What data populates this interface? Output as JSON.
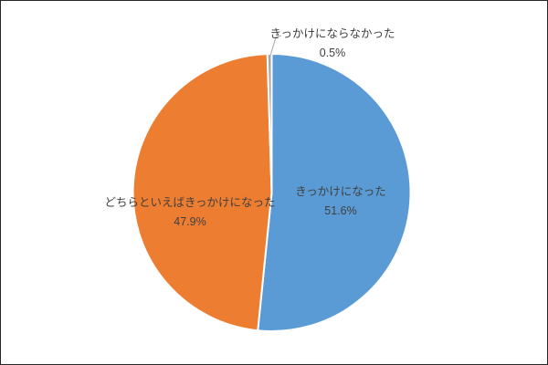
{
  "chart_data": {
    "type": "pie",
    "title": "",
    "legend": "none",
    "direction": "clockwise",
    "start_angle_deg": 0,
    "labels": [
      "きっかけになった",
      "どちらといえばきっかけになった",
      "きっかけにならなかった"
    ],
    "values": [
      51.6,
      47.9,
      0.5
    ],
    "display_percents": [
      "51.6%",
      "47.9%",
      "0.5%"
    ],
    "colors": [
      "#5B9BD5",
      "#ED7D31",
      "#A5A5A5"
    ],
    "slice_border_color": "#FFFFFF",
    "label_color": "#404040",
    "leader_line_color": "#A6A6A6",
    "frame_border_color": "#262626",
    "background_color": "#FFFFFF"
  }
}
